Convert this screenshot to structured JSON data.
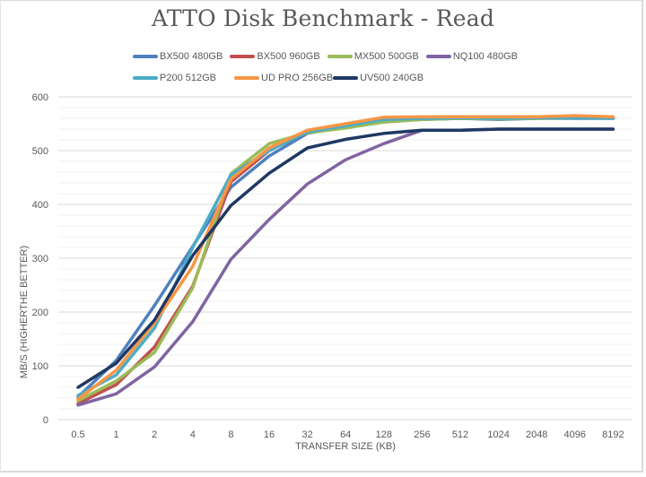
{
  "chart_data": {
    "type": "line",
    "title": "ATTO Disk Benchmark - Read",
    "xlabel": "TRANSFER SIZE (KB)",
    "ylabel": "MB/S (HIGHERTHE BETTER)",
    "ylim": [
      0,
      600
    ],
    "yticks": [
      0,
      100,
      200,
      300,
      400,
      500,
      600
    ],
    "minor_grid_step": 20,
    "grid": true,
    "legend_position": "top",
    "categories": [
      "0.5",
      "1",
      "2",
      "4",
      "8",
      "16",
      "32",
      "64",
      "128",
      "256",
      "512",
      "1024",
      "2048",
      "4096",
      "8192"
    ],
    "series": [
      {
        "name": "BX500 480GB",
        "color": "#4f81bd",
        "values": [
          42,
          110,
          212,
          322,
          432,
          490,
          532,
          545,
          555,
          558,
          560,
          558,
          560,
          560,
          560
        ]
      },
      {
        "name": "BX500 960GB",
        "color": "#c0504d",
        "values": [
          30,
          65,
          135,
          248,
          442,
          500,
          535,
          545,
          557,
          560,
          561,
          560,
          561,
          561,
          561
        ]
      },
      {
        "name": "MX500 500GB",
        "color": "#9bbb59",
        "values": [
          35,
          72,
          125,
          245,
          457,
          513,
          533,
          542,
          553,
          558,
          560,
          559,
          560,
          561,
          561
        ]
      },
      {
        "name": "NQ100 480GB",
        "color": "#8064a2",
        "values": [
          27,
          48,
          98,
          182,
          298,
          372,
          438,
          483,
          513,
          538,
          538,
          540,
          540,
          540,
          540
        ]
      },
      {
        "name": "P200 512GB",
        "color": "#4bacc6",
        "values": [
          45,
          83,
          170,
          320,
          455,
          500,
          535,
          546,
          558,
          560,
          561,
          560,
          561,
          561,
          560
        ]
      },
      {
        "name": "UD PRO 256GB",
        "color": "#f79646",
        "values": [
          38,
          92,
          180,
          285,
          447,
          505,
          538,
          550,
          562,
          563,
          563,
          563,
          563,
          565,
          563
        ]
      },
      {
        "name": "UV500 240GB",
        "color": "#1f3864",
        "values": [
          60,
          105,
          185,
          305,
          398,
          458,
          505,
          521,
          532,
          538,
          538,
          540,
          540,
          540,
          540
        ]
      }
    ]
  }
}
